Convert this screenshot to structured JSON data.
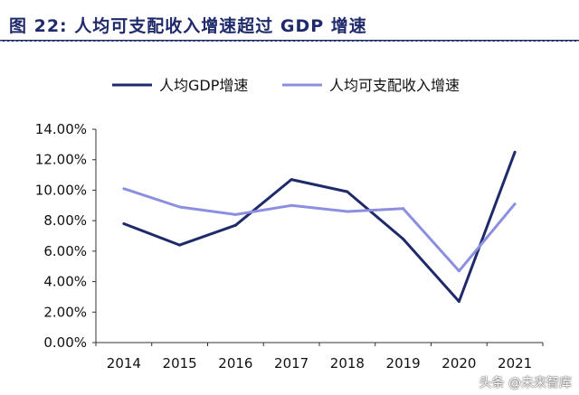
{
  "figure_title": "图 22:  人均可支配收入增速超过 GDP 增速",
  "watermark": "头条 @未来智库",
  "colors": {
    "title": "#1f2a6b",
    "series_gdp": "#1f2a6b",
    "series_income": "#8c8fe0"
  },
  "chart_data": {
    "type": "line",
    "categories": [
      "2014",
      "2015",
      "2016",
      "2017",
      "2018",
      "2019",
      "2020",
      "2021"
    ],
    "series": [
      {
        "name": "人均GDP增速",
        "values": [
          7.8,
          6.4,
          7.7,
          10.7,
          9.9,
          6.8,
          2.7,
          12.5
        ]
      },
      {
        "name": "人均可支配收入增速",
        "values": [
          10.1,
          8.9,
          8.4,
          9.0,
          8.6,
          8.8,
          4.7,
          9.1
        ]
      }
    ],
    "ylim": [
      0,
      14
    ],
    "y_ticks": [
      "0.00%",
      "2.00%",
      "4.00%",
      "6.00%",
      "8.00%",
      "10.00%",
      "12.00%",
      "14.00%"
    ],
    "legend_position": "top",
    "grid": false
  }
}
